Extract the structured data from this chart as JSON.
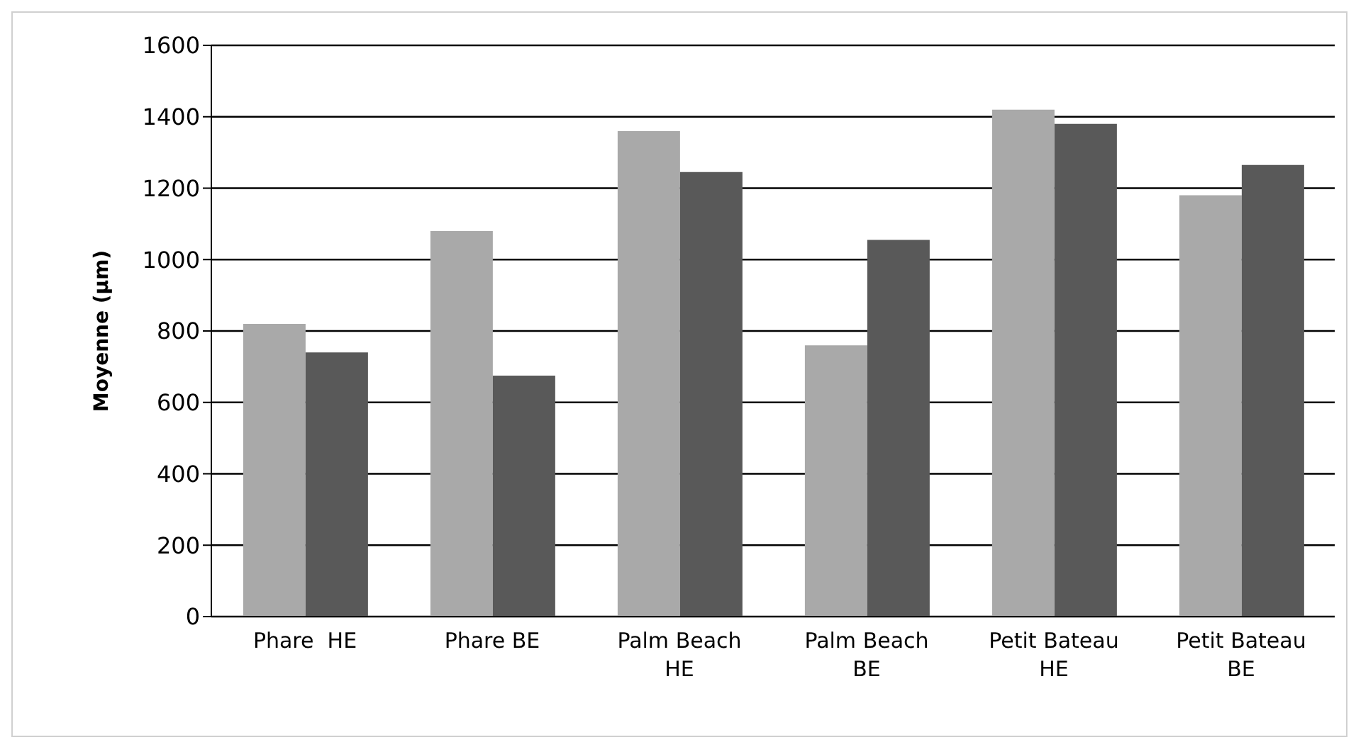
{
  "chart_data": {
    "type": "bar",
    "ylabel": "Moyenne (μm)",
    "categories": [
      "Phare  HE",
      "Phare BE",
      "Palm Beach HE",
      "Palm Beach BE",
      "Petit Bateau  HE",
      "Petit Bateau BE"
    ],
    "series": [
      {
        "color": "#a9a9a9",
        "values": [
          820,
          1080,
          1360,
          760,
          1420,
          1180
        ]
      },
      {
        "color": "#595959",
        "values": [
          740,
          675,
          1245,
          1055,
          1380,
          1265
        ]
      }
    ],
    "ylim": [
      0,
      1600
    ],
    "yticks": [
      0,
      200,
      400,
      600,
      800,
      1000,
      1200,
      1400,
      1600
    ],
    "grid": "y",
    "legend": false
  }
}
